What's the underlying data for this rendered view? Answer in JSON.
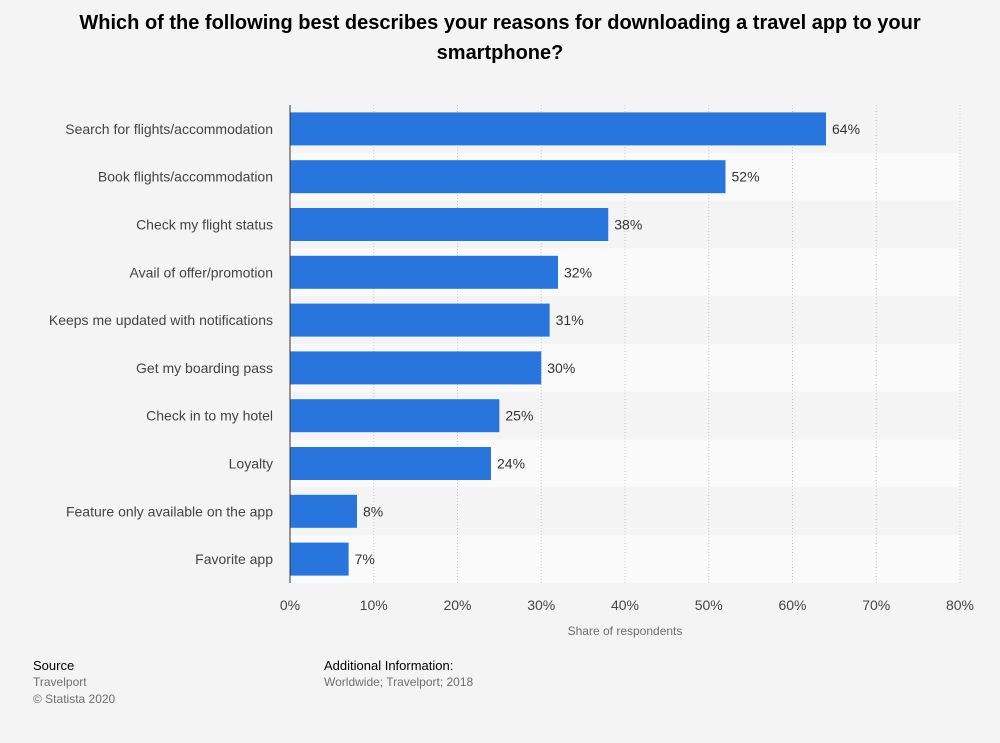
{
  "chart_data": {
    "type": "bar",
    "orientation": "horizontal",
    "title": "Which of the following best describes your reasons for downloading a travel app to your smartphone?",
    "xlabel": "Share of respondents",
    "ylabel": "",
    "categories": [
      "Search for flights/accommodation",
      "Book flights/accommodation",
      "Check my flight status",
      "Avail of offer/promotion",
      "Keeps me updated with notifications",
      "Get my boarding pass",
      "Check in to my hotel",
      "Loyalty",
      "Feature only available on the app",
      "Favorite app"
    ],
    "values": [
      64,
      52,
      38,
      32,
      31,
      30,
      25,
      24,
      8,
      7
    ],
    "value_labels": [
      "64%",
      "52%",
      "38%",
      "32%",
      "31%",
      "30%",
      "25%",
      "24%",
      "8%",
      "7%"
    ],
    "xlim": [
      0,
      80
    ],
    "xticks": [
      0,
      10,
      20,
      30,
      40,
      50,
      60,
      70,
      80
    ],
    "xtick_labels": [
      "0%",
      "10%",
      "20%",
      "30%",
      "40%",
      "50%",
      "60%",
      "70%",
      "80%"
    ],
    "grid": "vertical-dotted",
    "bar_color": "#2876dd",
    "band_colors": [
      "#f4f4f4",
      "#fafafa"
    ]
  },
  "footer": {
    "source_heading": "Source",
    "source_name": "Travelport",
    "copyright": "© Statista 2020",
    "info_heading": "Additional Information:",
    "info_text": "Worldwide; Travelport; 2018"
  }
}
